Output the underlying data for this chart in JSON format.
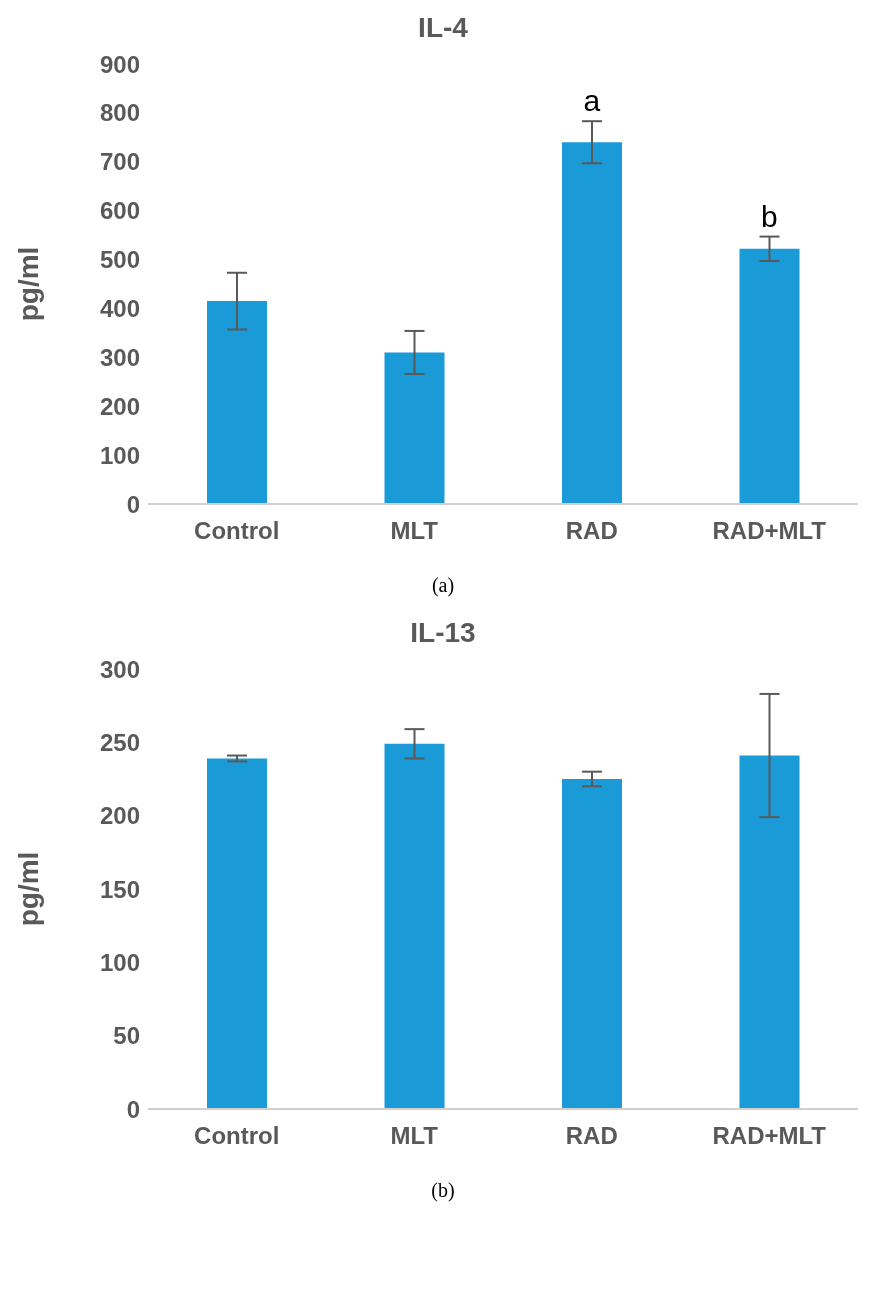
{
  "chart_data": [
    {
      "type": "bar",
      "title": "IL-4",
      "ylabel": "pg/ml",
      "categories": [
        "Control",
        "MLT",
        "RAD",
        "RAD+MLT"
      ],
      "series": [
        {
          "color": "#1a9ad6",
          "values": [
            415,
            310,
            740,
            522
          ],
          "errors": [
            58,
            44,
            43,
            25
          ]
        }
      ],
      "ylim": [
        0,
        900
      ],
      "yticks": [
        0,
        100,
        200,
        300,
        400,
        500,
        600,
        700,
        800,
        900
      ],
      "grid": false,
      "legend": false,
      "annotations": [
        {
          "text": "a",
          "x": "RAD",
          "y": 783
        },
        {
          "text": "b",
          "x": "RAD+MLT",
          "y": 547
        },
        "(a)"
      ]
    },
    {
      "type": "bar",
      "title": "IL-13",
      "ylabel": "pg/ml",
      "categories": [
        "Control",
        "MLT",
        "RAD",
        "RAD+MLT"
      ],
      "series": [
        {
          "color": "#1a9ad6",
          "values": [
            239,
            249,
            225,
            241
          ],
          "errors": [
            2,
            10,
            5,
            42
          ]
        }
      ],
      "ylim": [
        0,
        300
      ],
      "yticks": [
        0,
        50,
        100,
        150,
        200,
        250,
        300
      ],
      "grid": false,
      "legend": false,
      "annotations": [
        "(b)"
      ]
    }
  ]
}
